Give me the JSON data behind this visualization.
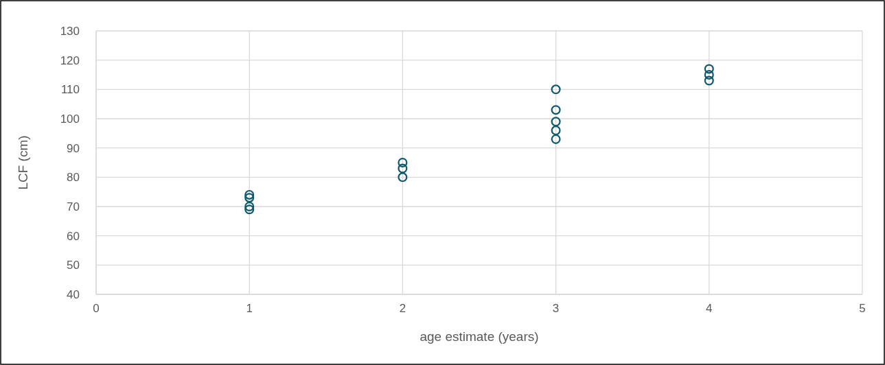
{
  "chart_data": {
    "type": "scatter",
    "xlabel": "age estimate (years)",
    "ylabel": "LCF (cm)",
    "x": [
      1,
      1,
      1,
      1,
      2,
      2,
      2,
      3,
      3,
      3,
      3,
      3,
      4,
      4,
      4
    ],
    "series": [
      {
        "color": "#0e5a6b",
        "values": [
          74,
          73,
          70,
          69,
          85,
          83,
          80,
          110,
          103,
          99,
          96,
          93,
          117,
          115,
          113
        ]
      }
    ],
    "xlim": [
      0,
      5
    ],
    "xticks": [
      0,
      1,
      2,
      3,
      4,
      5
    ],
    "ylim": [
      40,
      130
    ],
    "yticks": [
      40,
      50,
      60,
      70,
      80,
      90,
      100,
      110,
      120,
      130
    ],
    "grid": true,
    "marker": "circle"
  }
}
